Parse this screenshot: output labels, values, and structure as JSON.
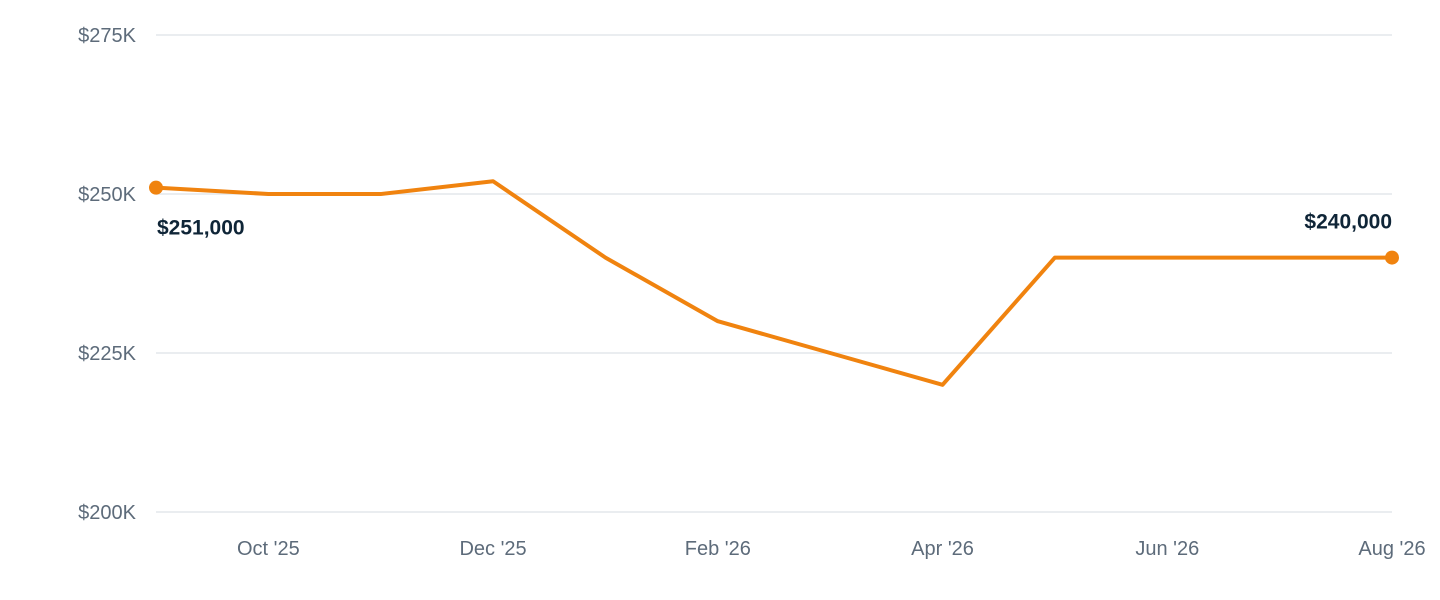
{
  "chart_data": {
    "type": "line",
    "title": "",
    "xlabel": "",
    "ylabel": "",
    "grid": true,
    "x_start": "Sep '25",
    "x_tick_labels": [
      "Oct '25",
      "Dec '25",
      "Feb '26",
      "Apr '26",
      "Jun '26",
      "Aug '26"
    ],
    "y_tick_labels": [
      "$200K",
      "$225K",
      "$250K",
      "$275K"
    ],
    "y_ticks": [
      200000,
      225000,
      250000,
      275000
    ],
    "ylim": [
      200000,
      275000
    ],
    "series": [
      {
        "color": "#f0830f",
        "points": [
          {
            "x": "Sep '25",
            "y": 251000
          },
          {
            "x": "Oct '25",
            "y": 250000
          },
          {
            "x": "Nov '25",
            "y": 250000
          },
          {
            "x": "Dec '25",
            "y": 252000
          },
          {
            "x": "Jan '26",
            "y": 240000
          },
          {
            "x": "Feb '26",
            "y": 230000
          },
          {
            "x": "Mar '26",
            "y": 225000
          },
          {
            "x": "Apr '26",
            "y": 220000
          },
          {
            "x": "May '26",
            "y": 240000
          },
          {
            "x": "Jun '26",
            "y": 240000
          },
          {
            "x": "Jul '26",
            "y": 240000
          },
          {
            "x": "Aug '26",
            "y": 240000
          }
        ]
      }
    ],
    "annotations": [
      {
        "text": "$251,000",
        "point": "first"
      },
      {
        "text": "$240,000",
        "point": "last"
      }
    ]
  }
}
